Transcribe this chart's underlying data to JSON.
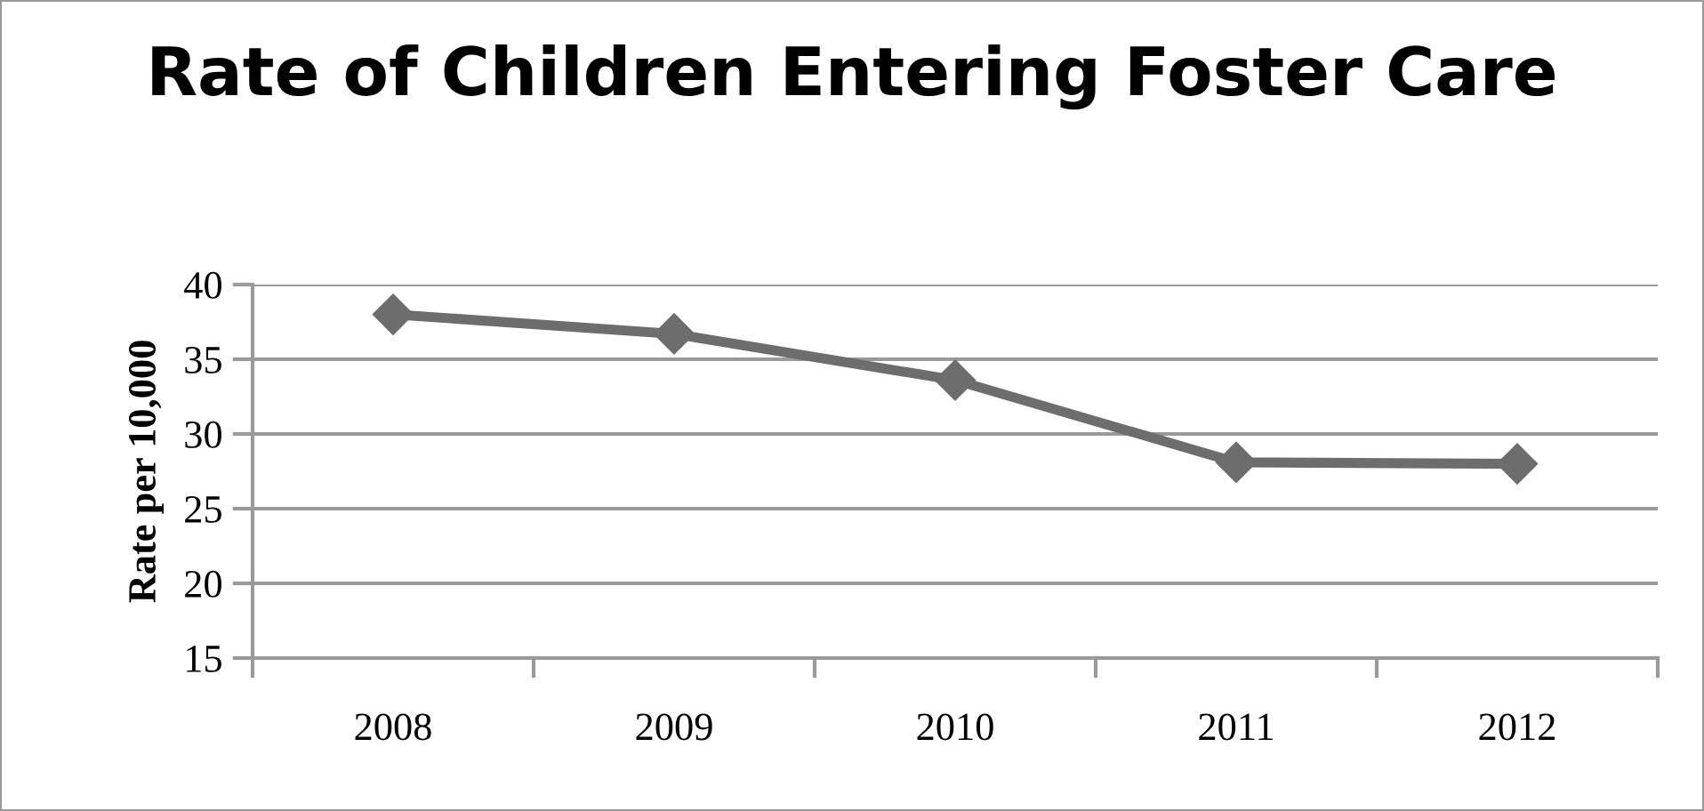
{
  "chart_data": {
    "type": "line",
    "title": "Rate of Children Entering Foster Care",
    "ylabel": "Rate per 10,000",
    "categories": [
      "2008",
      "2009",
      "2010",
      "2011",
      "2012"
    ],
    "series": [
      {
        "color": "#6d6d6d",
        "values": [
          38.0,
          36.7,
          33.6,
          28.1,
          28.0
        ]
      }
    ],
    "ylim": [
      15,
      40
    ],
    "yticks": [
      15,
      20,
      25,
      30,
      35,
      40
    ],
    "grid": "y",
    "marker": "diamond",
    "line_style": "solid"
  }
}
